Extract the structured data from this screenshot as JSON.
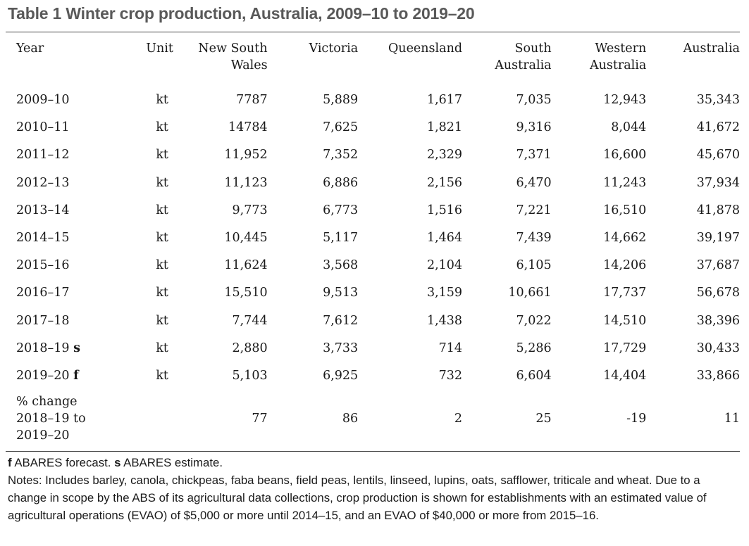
{
  "title": "Table 1 Winter crop production, Australia, 2009–10 to 2019–20",
  "table": {
    "headers": [
      "Year",
      "Unit",
      "New South\nWales",
      "Victoria",
      "Queensland",
      "South\nAustralia",
      "Western\nAustralia",
      "Australia"
    ],
    "rows": [
      {
        "year": "2009–10",
        "flag": "",
        "unit": "kt",
        "values": [
          "7787",
          "5,889",
          "1,617",
          "7,035",
          "12,943",
          "35,343"
        ]
      },
      {
        "year": "2010–11",
        "flag": "",
        "unit": "kt",
        "values": [
          "14784",
          "7,625",
          "1,821",
          "9,316",
          "8,044",
          "41,672"
        ]
      },
      {
        "year": "2011–12",
        "flag": "",
        "unit": "kt",
        "values": [
          "11,952",
          "7,352",
          "2,329",
          "7,371",
          "16,600",
          "45,670"
        ]
      },
      {
        "year": "2012–13",
        "flag": "",
        "unit": "kt",
        "values": [
          "11,123",
          "6,886",
          "2,156",
          "6,470",
          "11,243",
          "37,934"
        ]
      },
      {
        "year": "2013–14",
        "flag": "",
        "unit": "kt",
        "values": [
          "9,773",
          "6,773",
          "1,516",
          "7,221",
          "16,510",
          "41,878"
        ]
      },
      {
        "year": "2014–15",
        "flag": "",
        "unit": "kt",
        "values": [
          "10,445",
          "5,117",
          "1,464",
          "7,439",
          "14,662",
          "39,197"
        ]
      },
      {
        "year": "2015–16",
        "flag": "",
        "unit": "kt",
        "values": [
          "11,624",
          "3,568",
          "2,104",
          "6,105",
          "14,206",
          "37,687"
        ]
      },
      {
        "year": "2016–17",
        "flag": "",
        "unit": "kt",
        "values": [
          "15,510",
          "9,513",
          "3,159",
          "10,661",
          "17,737",
          "56,678"
        ]
      },
      {
        "year": "2017–18",
        "flag": "",
        "unit": "kt",
        "values": [
          "7,744",
          "7,612",
          "1,438",
          "7,022",
          "14,510",
          "38,396"
        ]
      },
      {
        "year": "2018–19",
        "flag": "s",
        "unit": "kt",
        "values": [
          "2,880",
          "3,733",
          "714",
          "5,286",
          "17,729",
          "30,433"
        ]
      },
      {
        "year": "2019–20",
        "flag": "f",
        "unit": "kt",
        "values": [
          "5,103",
          "6,925",
          "732",
          "6,604",
          "14,404",
          "33,866"
        ]
      }
    ],
    "pct_change": {
      "label": "% change\n2018–19 to\n2019–20",
      "unit": "",
      "values": [
        "77",
        "86",
        "2",
        "25",
        "-19",
        "11"
      ]
    }
  },
  "notes": {
    "footnote_f_key": "f",
    "footnote_f_text": " ABARES forecast. ",
    "footnote_s_key": "s",
    "footnote_s_text": " ABARES estimate.",
    "notes_text": "Notes: Includes barley, canola, chickpeas, faba beans, field peas, lentils, linseed, lupins, oats, safflower, triticale and wheat. Due to a change in scope by the ABS of its agricultural data collections, crop production is shown for establishments with an estimated value of agricultural operations (EVAO) of $5,000 or more until 2014–15, and an EVAO of $40,000 or more from 2015–16."
  }
}
